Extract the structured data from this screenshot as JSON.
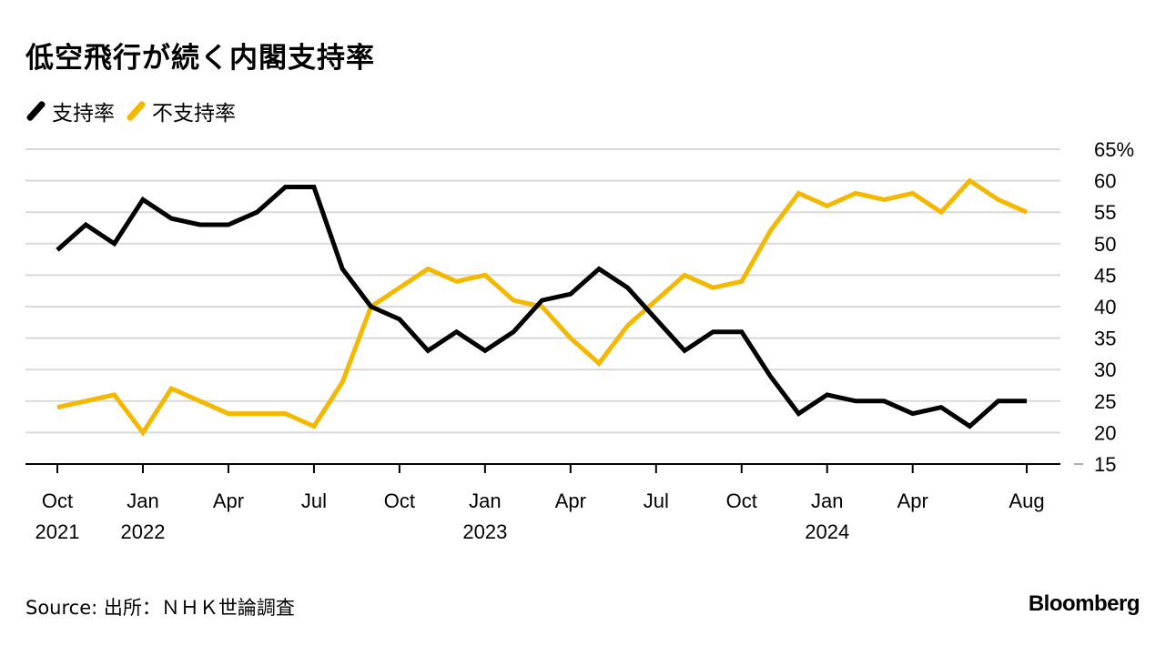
{
  "title": "低空飛行が続く内閣支持率",
  "colors": {
    "approve": "#000000",
    "disapprove": "#f5b800",
    "grid": "#d9d9d9",
    "axis": "#000000"
  },
  "source": "Source: 出所：ＮＨＫ世論調査",
  "logo": "Bloomberg",
  "chart_data": {
    "type": "line",
    "title": "低空飛行が続く内閣支持率",
    "ylim": [
      15,
      65
    ],
    "yticks": [
      15,
      20,
      25,
      30,
      35,
      40,
      45,
      50,
      55,
      60,
      65
    ],
    "ytick_labels": [
      "15",
      "20",
      "25",
      "30",
      "35",
      "40",
      "45",
      "50",
      "55",
      "60",
      "65%"
    ],
    "xlim": [
      0,
      34
    ],
    "x_ticks": [
      {
        "x": 0,
        "month": "Oct",
        "year": "2021"
      },
      {
        "x": 3,
        "month": "Jan",
        "year": "2022"
      },
      {
        "x": 6,
        "month": "Apr",
        "year": ""
      },
      {
        "x": 9,
        "month": "Jul",
        "year": ""
      },
      {
        "x": 12,
        "month": "Oct",
        "year": ""
      },
      {
        "x": 15,
        "month": "Jan",
        "year": "2023"
      },
      {
        "x": 18,
        "month": "Apr",
        "year": ""
      },
      {
        "x": 21,
        "month": "Jul",
        "year": ""
      },
      {
        "x": 24,
        "month": "Oct",
        "year": ""
      },
      {
        "x": 27,
        "month": "Jan",
        "year": "2024"
      },
      {
        "x": 30,
        "month": "Apr",
        "year": ""
      },
      {
        "x": 34,
        "month": "Aug",
        "year": ""
      }
    ],
    "series": [
      {
        "name": "支持率",
        "color": "#000000",
        "x": [
          0,
          1,
          2,
          3,
          4,
          5,
          6,
          7,
          8,
          9,
          10,
          11,
          12,
          13,
          14,
          15,
          16,
          17,
          18,
          19,
          20,
          21,
          22,
          23,
          24,
          25,
          26,
          27,
          28,
          29,
          30,
          31,
          32,
          33,
          34
        ],
        "values": [
          49,
          53,
          50,
          57,
          54,
          53,
          53,
          55,
          59,
          59,
          46,
          40,
          38,
          33,
          36,
          33,
          36,
          41,
          42,
          46,
          43,
          38,
          33,
          36,
          36,
          29,
          23,
          26,
          25,
          25,
          23,
          24,
          21,
          25,
          25
        ]
      },
      {
        "name": "不支持率",
        "color": "#f5b800",
        "x": [
          0,
          1,
          2,
          3,
          4,
          5,
          6,
          7,
          8,
          9,
          10,
          11,
          12,
          13,
          14,
          15,
          16,
          17,
          18,
          19,
          20,
          21,
          22,
          23,
          24,
          25,
          26,
          27,
          28,
          29,
          30,
          31,
          32,
          33,
          34
        ],
        "values": [
          24,
          25,
          26,
          20,
          27,
          25,
          23,
          23,
          23,
          21,
          28,
          40,
          43,
          46,
          44,
          45,
          41,
          40,
          35,
          31,
          37,
          41,
          45,
          43,
          44,
          52,
          58,
          56,
          58,
          57,
          58,
          55,
          60,
          57,
          55
        ]
      }
    ]
  }
}
